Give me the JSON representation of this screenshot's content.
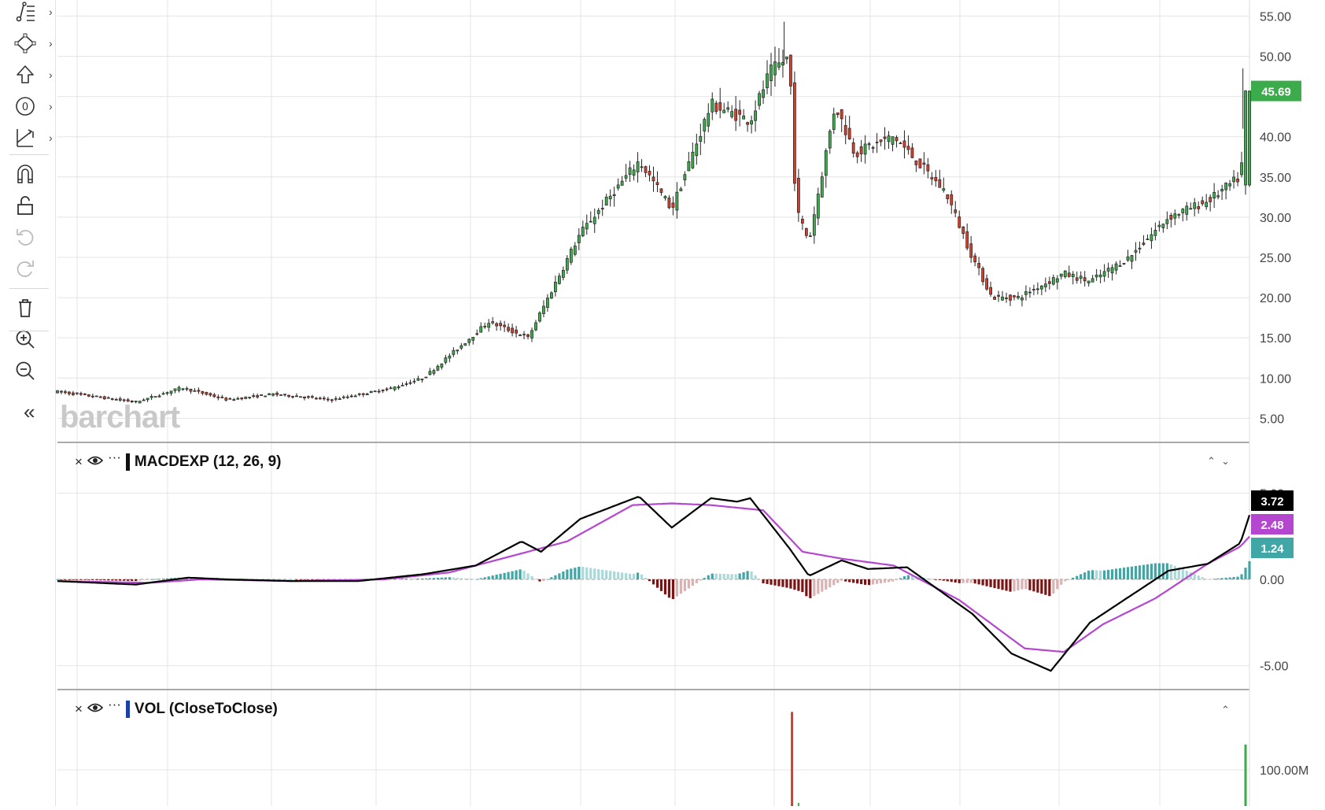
{
  "toolbar": {
    "tools": [
      {
        "name": "lines-tool-icon",
        "has_menu": true
      },
      {
        "name": "shapes-tool-icon",
        "has_menu": true
      },
      {
        "name": "arrow-tool-icon",
        "has_menu": true
      },
      {
        "name": "fib-tool-icon",
        "has_menu": true
      },
      {
        "name": "measure-tool-icon",
        "has_menu": true
      },
      {
        "name": "magnet-icon",
        "has_menu": false
      },
      {
        "name": "unlock-icon",
        "has_menu": false
      },
      {
        "name": "undo-icon",
        "has_menu": false
      },
      {
        "name": "redo-icon",
        "has_menu": false
      },
      {
        "name": "trash-icon",
        "has_menu": false
      },
      {
        "name": "zoom-in-icon",
        "has_menu": false
      },
      {
        "name": "zoom-out-icon",
        "has_menu": false
      },
      {
        "name": "collapse-icon",
        "has_menu": false
      }
    ],
    "collapse_label": "«",
    "chevron": "›"
  },
  "watermark": "barchart",
  "price_pane": {
    "y_ticks": [
      "55.00",
      "50.00",
      "45.00",
      "40.00",
      "35.00",
      "30.00",
      "25.00",
      "20.00",
      "15.00",
      "10.00",
      "5.00"
    ],
    "last_price": "45.69",
    "last_price_color": "#3cab4b"
  },
  "macd_pane": {
    "title": "MACDEXP (12, 26, 9)",
    "title_color": "#111111",
    "y_ticks": [
      "5.00",
      "0.00",
      "-5.00"
    ],
    "badges": [
      {
        "label": "3.72",
        "color": "#000000"
      },
      {
        "label": "2.48",
        "color": "#b446d0"
      },
      {
        "label": "1.24",
        "color": "#40a6a6"
      }
    ],
    "close_icon": "×",
    "more_icon": "···",
    "up_icon": "⌃",
    "down_icon": "⌄"
  },
  "vol_pane": {
    "title": "VOL (CloseToClose)",
    "title_color": "#1a3faa",
    "y_ticks": [
      "100.00M"
    ],
    "close_icon": "×",
    "more_icon": "···",
    "up_icon": "⌃"
  },
  "colors": {
    "up": "#3cab4b",
    "down": "#d3402c",
    "macd": "#000000",
    "signal": "#b446d0",
    "hist_pos": "#40a6a6",
    "hist_pos_light": "#a9d9d9",
    "hist_neg": "#7a1414",
    "hist_neg_light": "#d9b3b3"
  },
  "chart_data": {
    "type": "candlestick",
    "close_anchors": [
      [
        0,
        8.3
      ],
      [
        60,
        7
      ],
      [
        95,
        8.8
      ],
      [
        130,
        7.3
      ],
      [
        165,
        8
      ],
      [
        210,
        7.3
      ],
      [
        255,
        8.7
      ],
      [
        280,
        10
      ],
      [
        330,
        17
      ],
      [
        360,
        15
      ],
      [
        400,
        28
      ],
      [
        445,
        37
      ],
      [
        470,
        31
      ],
      [
        500,
        44
      ],
      [
        530,
        42
      ],
      [
        545,
        48
      ],
      [
        560,
        50
      ],
      [
        565,
        31
      ],
      [
        575,
        27
      ],
      [
        595,
        44
      ],
      [
        610,
        38
      ],
      [
        640,
        40
      ],
      [
        680,
        33
      ],
      [
        700,
        25
      ],
      [
        715,
        20
      ],
      [
        735,
        20
      ],
      [
        770,
        23
      ],
      [
        790,
        22
      ],
      [
        820,
        25
      ],
      [
        850,
        30
      ],
      [
        880,
        32
      ],
      [
        905,
        35
      ],
      [
        912,
        45.69
      ]
    ],
    "macd_anchors": [
      [
        0,
        -0.1
      ],
      [
        60,
        -0.3
      ],
      [
        100,
        0.1
      ],
      [
        130,
        0
      ],
      [
        180,
        -0.1
      ],
      [
        230,
        -0.1
      ],
      [
        280,
        0.3
      ],
      [
        320,
        0.8
      ],
      [
        355,
        2.2
      ],
      [
        370,
        1.6
      ],
      [
        400,
        3.5
      ],
      [
        445,
        4.8
      ],
      [
        470,
        3
      ],
      [
        500,
        4.7
      ],
      [
        520,
        4.5
      ],
      [
        530,
        4.7
      ],
      [
        560,
        1.8
      ],
      [
        575,
        0.2
      ],
      [
        600,
        1.1
      ],
      [
        620,
        0.6
      ],
      [
        650,
        0.7
      ],
      [
        700,
        -2
      ],
      [
        730,
        -4.3
      ],
      [
        760,
        -5.3
      ],
      [
        790,
        -2.5
      ],
      [
        820,
        -1
      ],
      [
        850,
        0.5
      ],
      [
        880,
        0.9
      ],
      [
        905,
        2.1
      ],
      [
        912,
        3.72
      ]
    ],
    "signal_anchors": [
      [
        0,
        -0.1
      ],
      [
        70,
        -0.2
      ],
      [
        110,
        0
      ],
      [
        180,
        -0.1
      ],
      [
        250,
        0
      ],
      [
        300,
        0.4
      ],
      [
        350,
        1.4
      ],
      [
        390,
        2.2
      ],
      [
        440,
        4.3
      ],
      [
        470,
        4.4
      ],
      [
        500,
        4.3
      ],
      [
        540,
        4
      ],
      [
        570,
        1.6
      ],
      [
        600,
        1.2
      ],
      [
        640,
        0.8
      ],
      [
        690,
        -1.2
      ],
      [
        740,
        -4
      ],
      [
        770,
        -4.2
      ],
      [
        800,
        -2.6
      ],
      [
        840,
        -1.1
      ],
      [
        880,
        0.9
      ],
      [
        905,
        1.9
      ],
      [
        912,
        2.48
      ]
    ],
    "volume_spikes": [
      {
        "bar": 562,
        "value": 130,
        "direction": "down"
      },
      {
        "bar": 909,
        "value": 85,
        "direction": "up"
      }
    ],
    "bar_count": 913,
    "y_unit": "price",
    "ylim": [
      2,
      57
    ],
    "macd_ylim": [
      -6.2,
      6.2
    ],
    "grid": true
  }
}
